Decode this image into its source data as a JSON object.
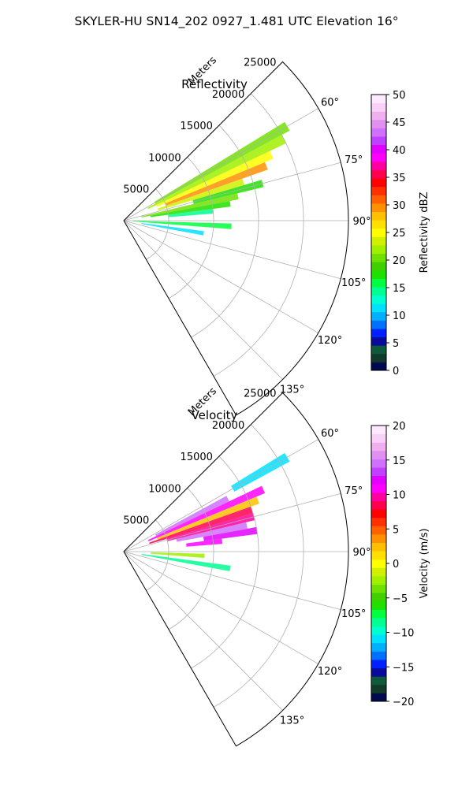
{
  "figure_title": "SKYLER-HU  SN14_202  0927_1.481 UTC Elevation 16°",
  "panels": [
    {
      "key": "reflectivity",
      "title": "Reflectivity",
      "range_axis_label": "Meters",
      "range_ticks": [
        "5000",
        "10000",
        "15000",
        "20000",
        "25000"
      ],
      "azimuth_ticks": [
        "60°",
        "75°",
        "90°",
        "105°",
        "120°",
        "135°"
      ],
      "colorbar": {
        "label": "Reflectivity dBZ",
        "range": [
          0,
          50
        ],
        "ticks": [
          "0",
          "5",
          "10",
          "15",
          "20",
          "25",
          "30",
          "35",
          "40",
          "45",
          "50"
        ],
        "colors": [
          "#000a4e",
          "#103a2a",
          "#0f5a3a",
          "#0a0a9a",
          "#0020ff",
          "#0070ff",
          "#00b0ff",
          "#00e0ff",
          "#00ffd0",
          "#00ff90",
          "#00ff40",
          "#20e000",
          "#40d000",
          "#70e000",
          "#a0f000",
          "#d0f000",
          "#ffff00",
          "#ffe000",
          "#ffc000",
          "#ff9000",
          "#ff6000",
          "#ff3000",
          "#ff0000",
          "#ff0050",
          "#ff00a0",
          "#ff00ff",
          "#e000ff",
          "#c040ff",
          "#d070ff",
          "#e090f0",
          "#f0b0f0",
          "#f8d0f8",
          "#fde8fd"
        ]
      }
    },
    {
      "key": "velocity",
      "title": "Velocity",
      "range_axis_label": "Meters",
      "range_ticks": [
        "5000",
        "10000",
        "15000",
        "20000",
        "25000"
      ],
      "azimuth_ticks": [
        "60°",
        "75°",
        "90°",
        "105°",
        "120°",
        "135°"
      ],
      "colorbar": {
        "label": "Velocity (m/s)",
        "range": [
          -20,
          20
        ],
        "ticks": [
          "−20",
          "−15",
          "−10",
          "−5",
          "0",
          "5",
          "10",
          "15",
          "20"
        ],
        "colors": [
          "#000a4e",
          "#103a2a",
          "#0f5a3a",
          "#0a0a9a",
          "#0020ff",
          "#0070ff",
          "#00b0ff",
          "#00e0ff",
          "#00ffd0",
          "#00ff90",
          "#00ff40",
          "#20e000",
          "#40d000",
          "#70e000",
          "#a0f000",
          "#d0f000",
          "#ffff00",
          "#ffe000",
          "#ffc000",
          "#ff9000",
          "#ff6000",
          "#ff3000",
          "#ff0000",
          "#ff0050",
          "#ff00a0",
          "#ff00ff",
          "#e000ff",
          "#c040ff",
          "#d070ff",
          "#e090f0",
          "#f0b0f0",
          "#f8d0f8",
          "#fde8fd"
        ]
      }
    }
  ],
  "chart_data": [
    {
      "type": "heatmap",
      "projection": "polar sector",
      "title": "Reflectivity",
      "azimuth_range_deg": [
        45,
        150
      ],
      "range_max_m": 25000,
      "colorbar_range": [
        0,
        50
      ],
      "colorbar_label": "Reflectivity dBZ",
      "echoes": [
        {
          "az": 60,
          "r0": 4000,
          "r1": 21000,
          "value": 20
        },
        {
          "az": 63,
          "r0": 3000,
          "r1": 20000,
          "value": 22
        },
        {
          "az": 66,
          "r0": 4000,
          "r1": 18000,
          "value": 25
        },
        {
          "az": 69,
          "r0": 5000,
          "r1": 17000,
          "value": 30
        },
        {
          "az": 72,
          "r0": 4000,
          "r1": 14000,
          "value": 24
        },
        {
          "az": 75,
          "r0": 8000,
          "r1": 16000,
          "value": 18
        },
        {
          "az": 78,
          "r0": 2000,
          "r1": 13000,
          "value": 20
        },
        {
          "az": 81,
          "r0": 3000,
          "r1": 12000,
          "value": 17
        },
        {
          "az": 84,
          "r0": 5000,
          "r1": 10000,
          "value": 14
        },
        {
          "az": 93,
          "r0": 1000,
          "r1": 12000,
          "value": 16
        },
        {
          "az": 99,
          "r0": 2000,
          "r1": 9000,
          "value": 12
        }
      ]
    },
    {
      "type": "heatmap",
      "projection": "polar sector",
      "title": "Velocity",
      "azimuth_range_deg": [
        45,
        150
      ],
      "range_max_m": 25000,
      "colorbar_range": [
        -20,
        20
      ],
      "colorbar_label": "Velocity (m/s)",
      "echoes": [
        {
          "az": 60,
          "r0": 14000,
          "r1": 21000,
          "value": -11
        },
        {
          "az": 63,
          "r0": 4000,
          "r1": 13000,
          "value": 14
        },
        {
          "az": 66,
          "r0": 3000,
          "r1": 17000,
          "value": 11
        },
        {
          "az": 69,
          "r0": 4000,
          "r1": 16000,
          "value": 3
        },
        {
          "az": 72,
          "r0": 3000,
          "r1": 15000,
          "value": 8
        },
        {
          "az": 75,
          "r0": 5000,
          "r1": 15000,
          "value": 10
        },
        {
          "az": 78,
          "r0": 6000,
          "r1": 14000,
          "value": 15
        },
        {
          "az": 81,
          "r0": 9000,
          "r1": 15000,
          "value": 12
        },
        {
          "az": 84,
          "r0": 7000,
          "r1": 11000,
          "value": 11
        },
        {
          "az": 93,
          "r0": 3000,
          "r1": 9000,
          "value": -2
        },
        {
          "az": 99,
          "r0": 2000,
          "r1": 12000,
          "value": -8
        }
      ]
    }
  ]
}
